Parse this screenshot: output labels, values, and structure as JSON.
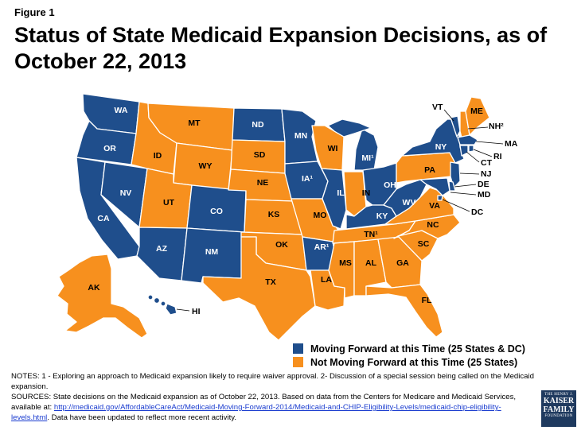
{
  "figure_label": "Figure 1",
  "title": "Status of State Medicaid Expansion Decisions, as of October 22, 2013",
  "colors": {
    "moving": "#1f4e8c",
    "not_moving": "#f7901e"
  },
  "legend": [
    {
      "key": "moving",
      "label": "Moving Forward at this Time (25 States & DC)"
    },
    {
      "key": "not_moving",
      "label": "Not Moving Forward at this Time (25 States)"
    }
  ],
  "states": {
    "WA": {
      "label": "WA",
      "status": "moving"
    },
    "OR": {
      "label": "OR",
      "status": "moving"
    },
    "CA": {
      "label": "CA",
      "status": "moving"
    },
    "NV": {
      "label": "NV",
      "status": "moving"
    },
    "ID": {
      "label": "ID",
      "status": "not_moving"
    },
    "MT": {
      "label": "MT",
      "status": "not_moving"
    },
    "WY": {
      "label": "WY",
      "status": "not_moving"
    },
    "UT": {
      "label": "UT",
      "status": "not_moving"
    },
    "CO": {
      "label": "CO",
      "status": "moving"
    },
    "AZ": {
      "label": "AZ",
      "status": "moving"
    },
    "NM": {
      "label": "NM",
      "status": "moving"
    },
    "ND": {
      "label": "ND",
      "status": "moving"
    },
    "SD": {
      "label": "SD",
      "status": "not_moving"
    },
    "NE": {
      "label": "NE",
      "status": "not_moving"
    },
    "KS": {
      "label": "KS",
      "status": "not_moving"
    },
    "OK": {
      "label": "OK",
      "status": "not_moving"
    },
    "TX": {
      "label": "TX",
      "status": "not_moving"
    },
    "MN": {
      "label": "MN",
      "status": "moving"
    },
    "IA": {
      "label": "IA¹",
      "status": "moving"
    },
    "MO": {
      "label": "MO",
      "status": "not_moving"
    },
    "AR": {
      "label": "AR¹",
      "status": "moving"
    },
    "LA": {
      "label": "LA",
      "status": "not_moving"
    },
    "WI": {
      "label": "WI",
      "status": "not_moving"
    },
    "IL": {
      "label": "IL",
      "status": "moving"
    },
    "MI": {
      "label": "MI¹",
      "status": "moving"
    },
    "IN": {
      "label": "IN",
      "status": "not_moving"
    },
    "OH": {
      "label": "OH",
      "status": "moving"
    },
    "KY": {
      "label": "KY",
      "status": "moving"
    },
    "TN": {
      "label": "TN¹",
      "status": "not_moving"
    },
    "MS": {
      "label": "MS",
      "status": "not_moving"
    },
    "AL": {
      "label": "AL",
      "status": "not_moving"
    },
    "GA": {
      "label": "GA",
      "status": "not_moving"
    },
    "FL": {
      "label": "FL",
      "status": "not_moving"
    },
    "SC": {
      "label": "SC",
      "status": "not_moving"
    },
    "NC": {
      "label": "NC",
      "status": "not_moving"
    },
    "VA": {
      "label": "VA",
      "status": "not_moving"
    },
    "WV": {
      "label": "WV",
      "status": "moving"
    },
    "PA": {
      "label": "PA",
      "status": "not_moving"
    },
    "NY": {
      "label": "NY",
      "status": "moving"
    },
    "VT": {
      "label": "VT",
      "status": "moving"
    },
    "ME": {
      "label": "ME",
      "status": "not_moving"
    },
    "NH": {
      "label": "NH²",
      "status": "not_moving"
    },
    "MA": {
      "label": "MA",
      "status": "moving"
    },
    "RI": {
      "label": "RI",
      "status": "moving"
    },
    "CT": {
      "label": "CT",
      "status": "moving"
    },
    "NJ": {
      "label": "NJ",
      "status": "moving"
    },
    "DE": {
      "label": "DE",
      "status": "moving"
    },
    "MD": {
      "label": "MD",
      "status": "moving"
    },
    "DC": {
      "label": "DC",
      "status": "moving"
    },
    "AK": {
      "label": "AK",
      "status": "not_moving"
    },
    "HI": {
      "label": "HI",
      "status": "moving"
    }
  },
  "notes": {
    "line1": "NOTES: 1 - Exploring an approach to Medicaid expansion likely to require waiver approval. 2- Discussion of a special session being called on the Medicaid expansion.",
    "sources_prefix": "SOURCES: State decisions on the Medicaid expansion as of October 22, 2013. Based on data from the Centers for Medicare and Medicaid Services, available at: ",
    "link": "http://medicaid.gov/AffordableCareAct/Medicaid-Moving-Forward-2014/Medicaid-and-CHIP-Eligibility-Levels/medicaid-chip-eligibility-levels.html",
    "sources_suffix": ". Data have been updated to reflect more recent activity."
  },
  "logo": {
    "line1": "THE HENRY J.",
    "line2": "KAISER",
    "line3": "FAMILY",
    "line4": "FOUNDATION"
  }
}
